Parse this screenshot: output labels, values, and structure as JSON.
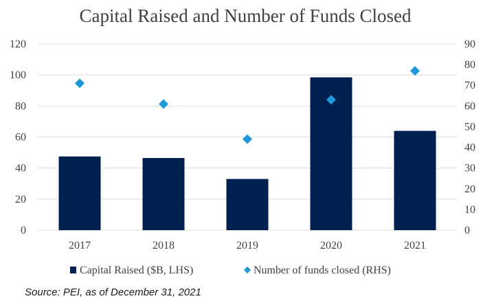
{
  "colors": {
    "bar": "#00204f",
    "marker": "#1e98d8",
    "grid": "#d9d9d9",
    "text": "#404040"
  },
  "chart_data": {
    "type": "bar",
    "title": "Capital Raised and Number of Funds Closed",
    "categories": [
      "2017",
      "2018",
      "2019",
      "2020",
      "2021"
    ],
    "series": [
      {
        "name": "Capital Raised ($B, LHS)",
        "type": "bar",
        "axis": "left",
        "values": [
          47.5,
          46.5,
          33,
          98.5,
          64
        ]
      },
      {
        "name": "Number of funds closed (RHS)",
        "type": "scatter",
        "marker": "diamond",
        "axis": "right",
        "values": [
          71,
          61,
          44,
          63,
          77
        ]
      }
    ],
    "ylim_left": [
      0,
      120
    ],
    "yticks_left": [
      "0",
      "20",
      "40",
      "60",
      "80",
      "100",
      "120"
    ],
    "ylim_right": [
      0,
      90
    ],
    "yticks_right": [
      "0",
      "10",
      "20",
      "30",
      "40",
      "50",
      "60",
      "70",
      "80",
      "90"
    ],
    "grid": true,
    "legend_position": "bottom",
    "source": "Source: PEI, as of December 31, 2021"
  }
}
